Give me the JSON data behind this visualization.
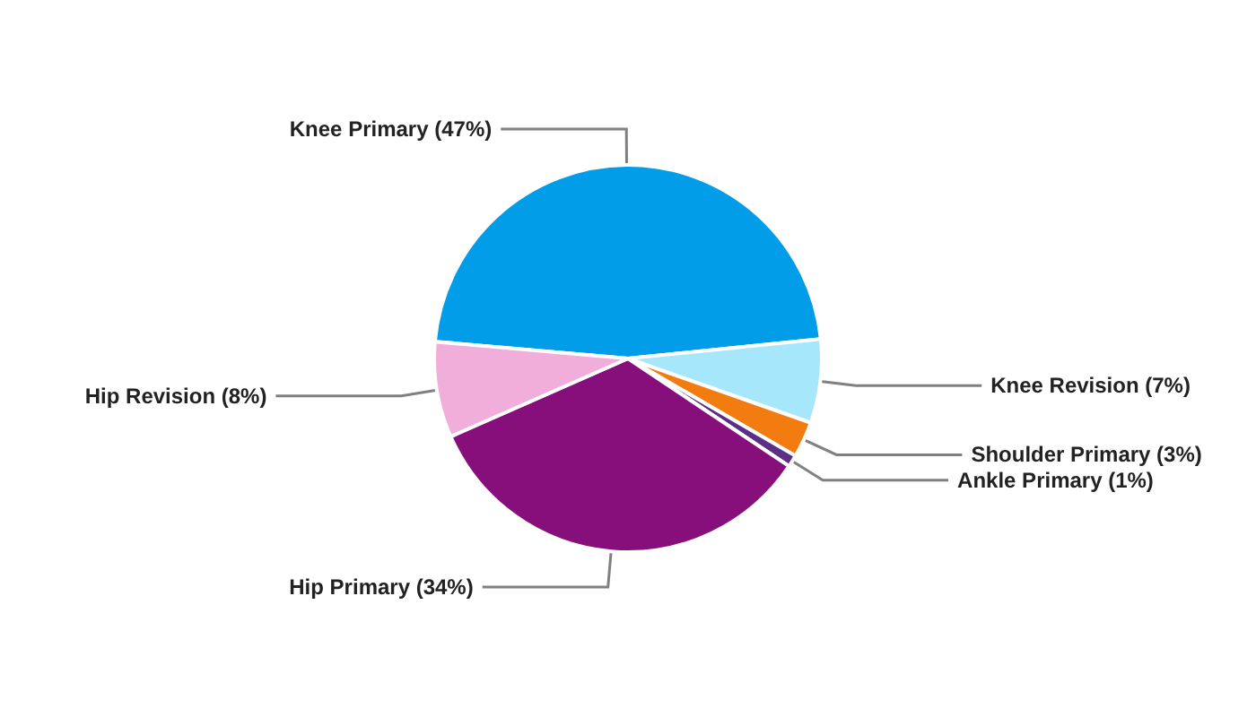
{
  "chart_data": {
    "type": "pie",
    "categories": [
      "Knee Primary (47%)",
      "Knee Revision (7%)",
      "Shoulder Primary (3%)",
      "Ankle Primary (1%)",
      "Hip Primary (34%)",
      "Hip Revision (8%)"
    ],
    "values": [
      47,
      7,
      3,
      1,
      34,
      8
    ],
    "colors": [
      "#019de9",
      "#a6e7fc",
      "#f27c10",
      "#5b2f86",
      "#860f7b",
      "#f2aedb"
    ],
    "legend": false
  }
}
